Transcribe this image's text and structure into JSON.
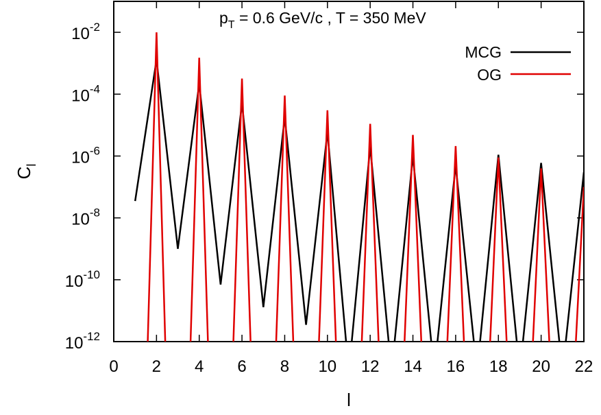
{
  "chart_data": {
    "type": "line",
    "title": "pT = 0.6 GeV/c , T = 350 MeV",
    "title_parts": {
      "p": "p",
      "sub": "T",
      "rest": " = 0.6 GeV/c , T = 350 MeV"
    },
    "xlabel": "l",
    "ylabel": {
      "base": "C",
      "sub": "l"
    },
    "xlim": [
      0,
      22
    ],
    "ylim": [
      1e-12,
      0.1
    ],
    "yscale": "log",
    "grid": false,
    "legend_position": "top-right",
    "x_ticks": [
      "0",
      "2",
      "4",
      "6",
      "8",
      "10",
      "12",
      "14",
      "16",
      "18",
      "20",
      "22"
    ],
    "y_ticks": [
      {
        "base": "10",
        "exp": "-2"
      },
      {
        "base": "10",
        "exp": "-4"
      },
      {
        "base": "10",
        "exp": "-6"
      },
      {
        "base": "10",
        "exp": "-8"
      },
      {
        "base": "10",
        "exp": "-10"
      },
      {
        "base": "10",
        "exp": "-12"
      }
    ],
    "series": [
      {
        "name": "MCG",
        "color": "#000000",
        "x": [
          1,
          2,
          3,
          4,
          5,
          6,
          7,
          8,
          9,
          10,
          11,
          12,
          13,
          14,
          15,
          16,
          17,
          18,
          19,
          20,
          21,
          22
        ],
        "y": [
          3.5e-08,
          0.0013,
          1e-09,
          0.00022,
          7e-11,
          5e-05,
          1.3e-11,
          1.8e-05,
          3.5e-12,
          6e-06,
          1e-13,
          2e-06,
          1e-13,
          1e-06,
          1e-13,
          5e-07,
          1e-13,
          1.1e-06,
          1e-13,
          6e-07,
          1e-13,
          3e-07
        ]
      },
      {
        "name": "OG",
        "color": "#e00000",
        "x": [
          1.55,
          2,
          2.45,
          3.55,
          4,
          4.45,
          5.55,
          6,
          6.45,
          7.55,
          8,
          8.45,
          9.55,
          10,
          10.45,
          11.55,
          12,
          12.45,
          13.55,
          14,
          14.45,
          15.55,
          16,
          16.45,
          17.55,
          18,
          18.45,
          19.55,
          20,
          20.45,
          21.55,
          22
        ],
        "y": [
          1e-13,
          0.01,
          1e-13,
          1e-13,
          0.0015,
          1e-13,
          1e-13,
          0.00032,
          1e-13,
          1e-13,
          9e-05,
          1e-13,
          1e-13,
          3e-05,
          1e-13,
          1e-13,
          1.1e-05,
          1e-13,
          1e-13,
          4.8e-06,
          1e-13,
          1e-13,
          2.1e-06,
          1e-13,
          1e-13,
          9e-07,
          1e-13,
          1e-13,
          4e-07,
          1e-13,
          1e-13,
          1e-07
        ]
      }
    ]
  }
}
